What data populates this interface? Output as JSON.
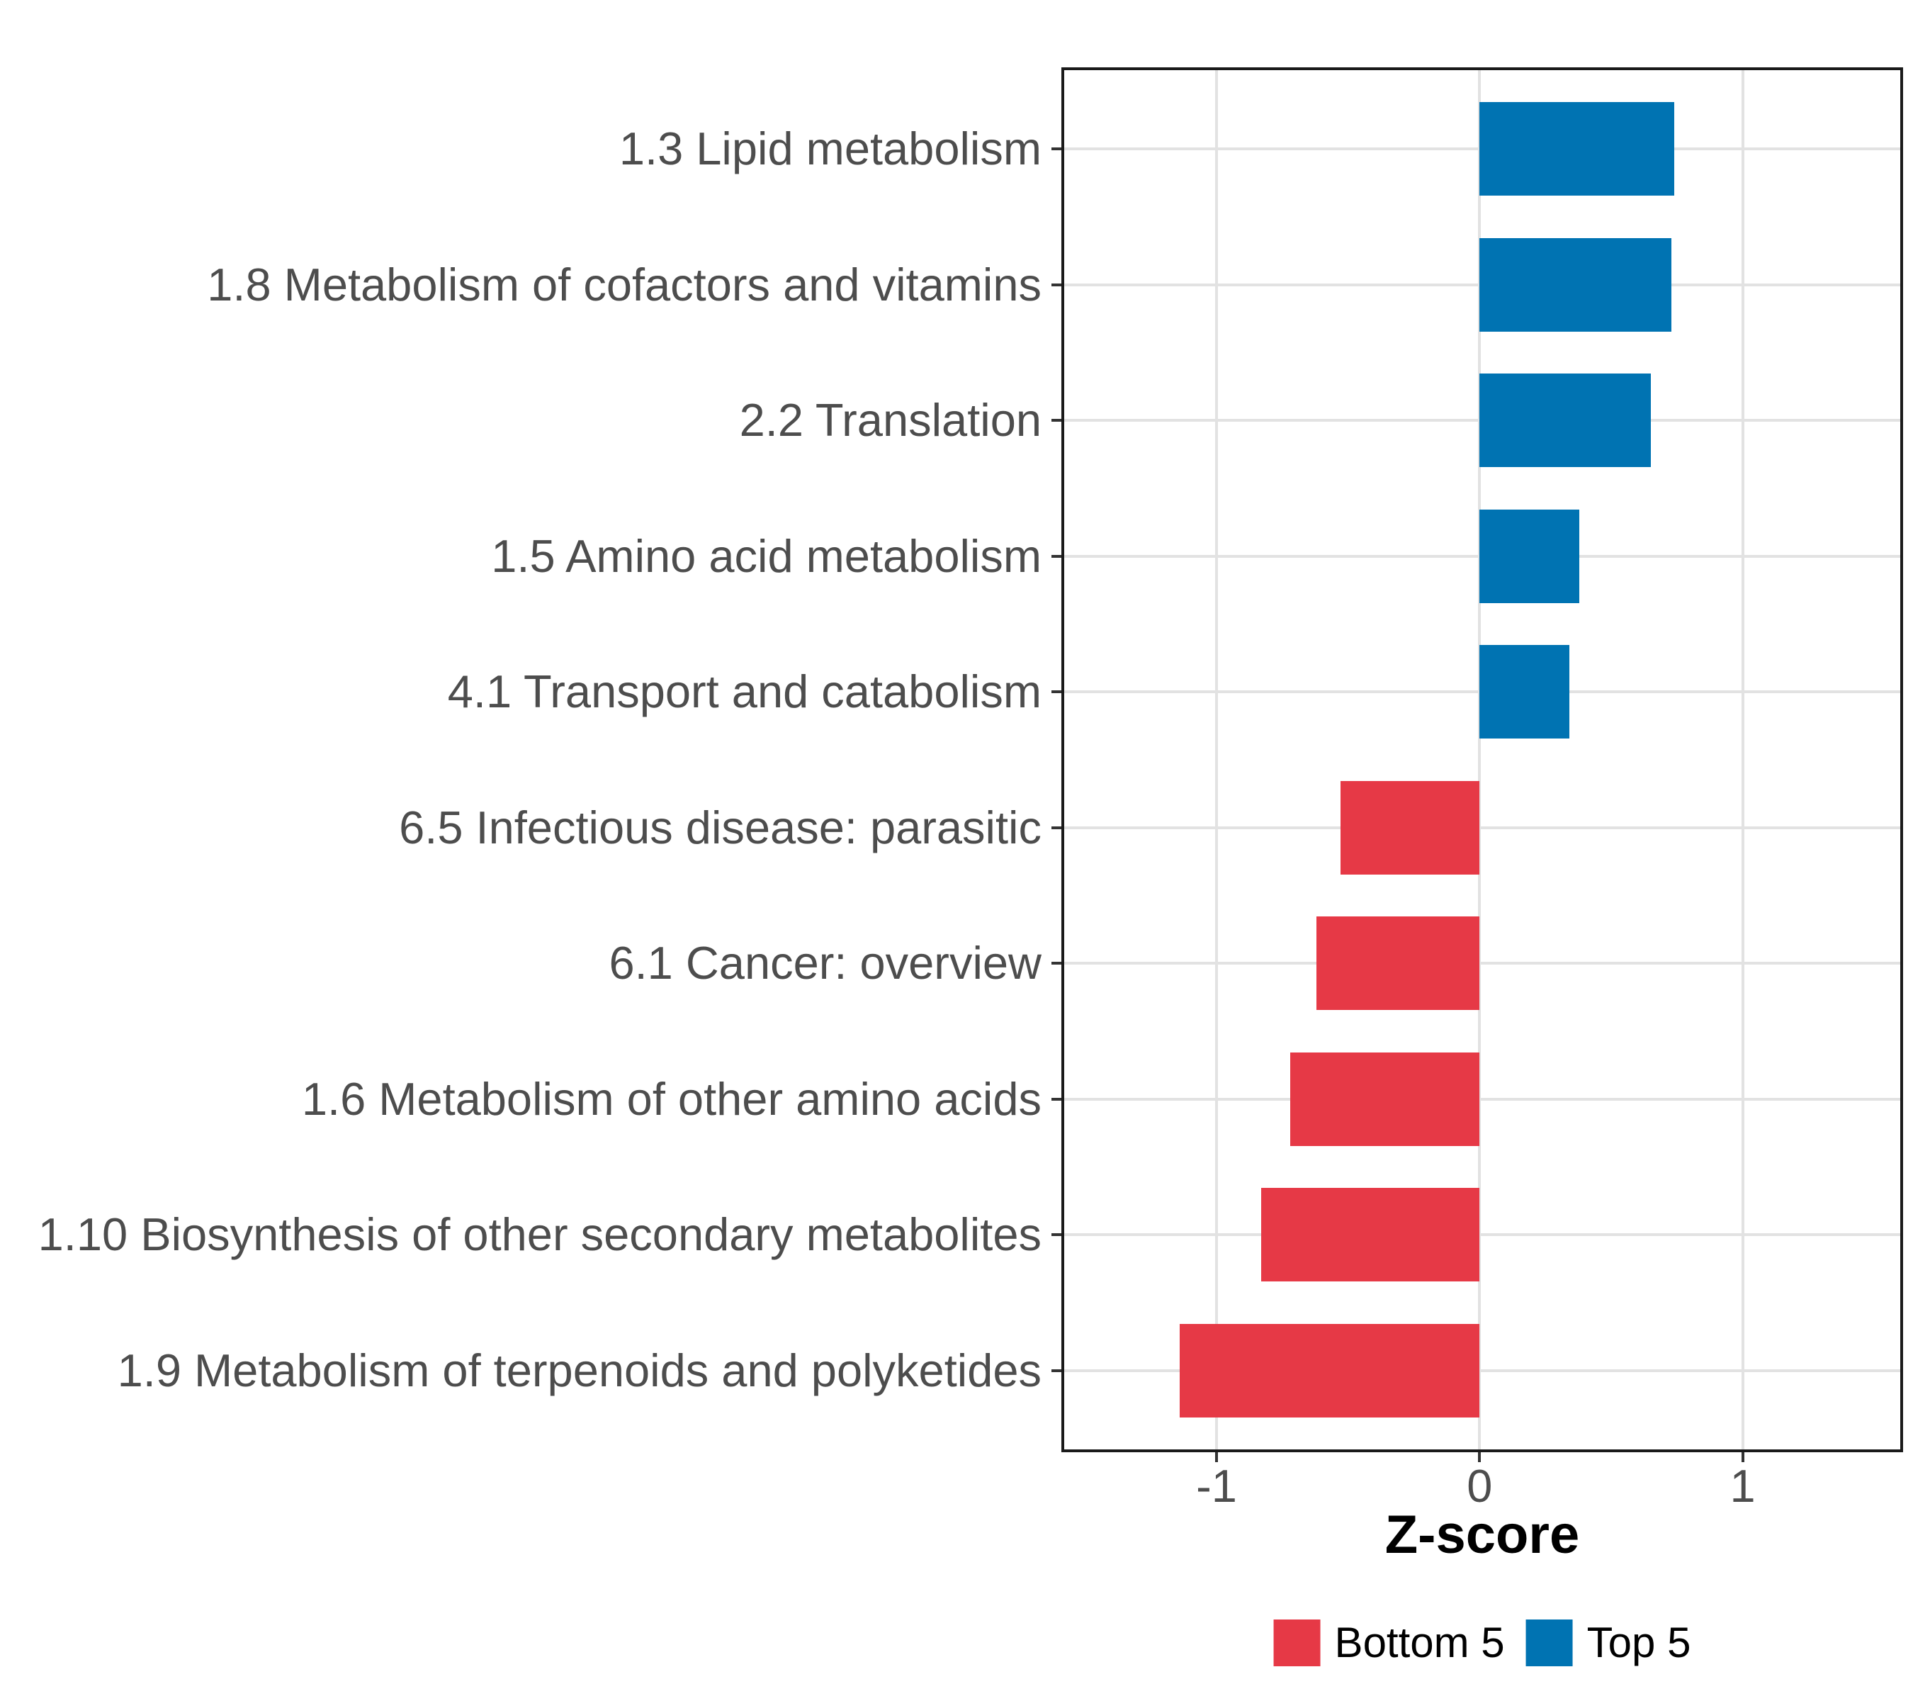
{
  "chart_data": {
    "type": "bar",
    "orientation": "horizontal",
    "title": "",
    "xlabel": "Z-score",
    "ylabel": "",
    "categories": [
      "1.3 Lipid metabolism",
      "1.8 Metabolism of cofactors and vitamins",
      "2.2 Translation",
      "1.5 Amino acid metabolism",
      "4.1 Transport and catabolism",
      "6.5 Infectious disease: parasitic",
      "6.1 Cancer: overview",
      "1.6 Metabolism of other amino acids",
      "1.10 Biosynthesis of other secondary metabolites",
      "1.9 Metabolism of terpenoids and polyketides"
    ],
    "values": [
      0.74,
      0.73,
      0.65,
      0.38,
      0.34,
      -0.53,
      -0.62,
      -0.72,
      -0.83,
      -1.14
    ],
    "groups": [
      "Top 5",
      "Top 5",
      "Top 5",
      "Top 5",
      "Top 5",
      "Bottom 5",
      "Bottom 5",
      "Bottom 5",
      "Bottom 5",
      "Bottom 5"
    ],
    "group_colors": {
      "Bottom 5": "#E63946",
      "Top 5": "#0073B2"
    },
    "xlim": [
      -1.59,
      1.61
    ],
    "x_ticks": [
      -1,
      0,
      1
    ],
    "x_tick_labels": [
      "-1",
      "0",
      "1"
    ],
    "grid": "major",
    "legend": {
      "position": "bottom",
      "entries": [
        {
          "label": "Bottom 5",
          "color": "#E63946"
        },
        {
          "label": "Top 5",
          "color": "#0073B2"
        }
      ]
    }
  }
}
